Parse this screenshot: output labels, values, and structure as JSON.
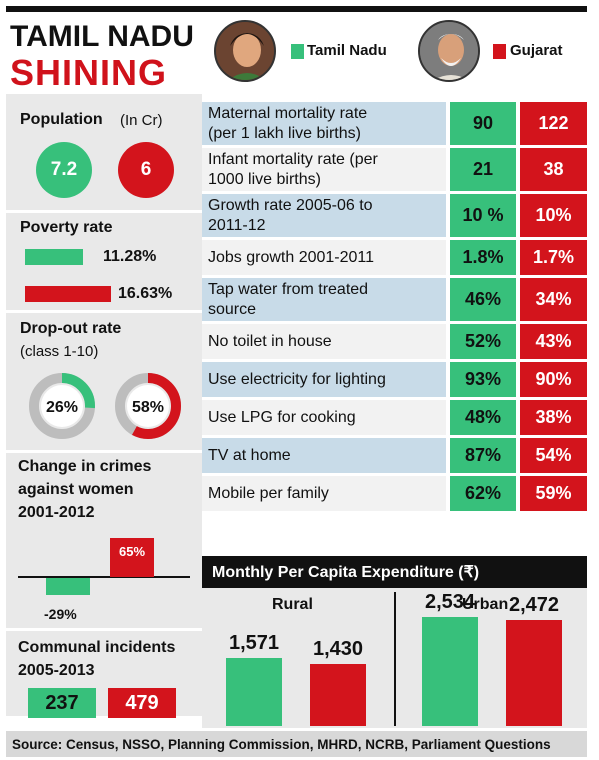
{
  "title_line1": "TAMIL NADU",
  "title_line2": "SHINING",
  "legend": {
    "tn_label": "Tamil Nadu",
    "gj_label": "Gujarat",
    "tn_color": "#37c07b",
    "gj_color": "#d3141c"
  },
  "population": {
    "title": "Population",
    "unit": "(In Cr)",
    "tn": "7.2",
    "gj": "6"
  },
  "poverty": {
    "title": "Poverty rate",
    "tn_text": "11.28%",
    "gj_text": "16.63%",
    "tn": 11.28,
    "gj": 16.63
  },
  "dropout": {
    "title": "Drop-out rate",
    "sub": "(class 1-10)",
    "tn_text": "26%",
    "gj_text": "58%",
    "tn": 26,
    "gj": 58
  },
  "crimes": {
    "title_line1": "Change in crimes",
    "title_line2": "against women",
    "title_line3": "2001-2012",
    "tn_text": "-29%",
    "gj_text": "65%",
    "tn": -29,
    "gj": 65
  },
  "communal": {
    "title_line1": "Communal incidents",
    "title_line2": "2005-2013",
    "tn": "237",
    "gj": "479"
  },
  "indicators": [
    {
      "line1": "Maternal mortality rate",
      "line2": "(per 1 lakh live births)",
      "tn": "90",
      "gj": "122",
      "shade": true
    },
    {
      "line1": "Infant mortality rate (per",
      "line2": "1000 live births)",
      "tn": "21",
      "gj": "38",
      "shade": false
    },
    {
      "line1": "Growth rate 2005-06 to",
      "line2": "2011-12",
      "tn": "10 %",
      "gj": "10%",
      "shade": true
    },
    {
      "line1": "Jobs growth 2001-2011",
      "line2": "",
      "tn": "1.8%",
      "gj": "1.7%",
      "shade": false
    },
    {
      "line1": "Tap water from treated",
      "line2": "source",
      "tn": "46%",
      "gj": "34%",
      "shade": true
    },
    {
      "line1": "No toilet in house",
      "line2": "",
      "tn": "52%",
      "gj": "43%",
      "shade": false
    },
    {
      "line1": "Use electricity for lighting",
      "line2": "",
      "tn": "93%",
      "gj": "90%",
      "shade": true
    },
    {
      "line1": "Use LPG for cooking",
      "line2": "",
      "tn": "48%",
      "gj": "38%",
      "shade": false
    },
    {
      "line1": "TV at home",
      "line2": "",
      "tn": "87%",
      "gj": "54%",
      "shade": true
    },
    {
      "line1": "Mobile per family",
      "line2": "",
      "tn": "62%",
      "gj": "59%",
      "shade": false
    }
  ],
  "expenditure": {
    "title": "Monthly Per Capita Expenditure (₹)",
    "rural_label": "Rural",
    "urban_label": "Urban",
    "rural_tn_text": "1,571",
    "rural_gj_text": "1,430",
    "urban_tn_text": "2,534",
    "urban_gj_text": "2,472"
  },
  "source": "Source: Census, NSSO, Planning Commission, MHRD, NCRB, Parliament Questions",
  "chart_data": {
    "type": "bar",
    "title": "Monthly Per Capita Expenditure (₹)",
    "categories": [
      "Rural",
      "Urban"
    ],
    "series": [
      {
        "name": "Tamil Nadu",
        "values": [
          1571,
          2534
        ]
      },
      {
        "name": "Gujarat",
        "values": [
          1430,
          2472
        ]
      }
    ],
    "ylim": [
      0,
      2600
    ]
  }
}
